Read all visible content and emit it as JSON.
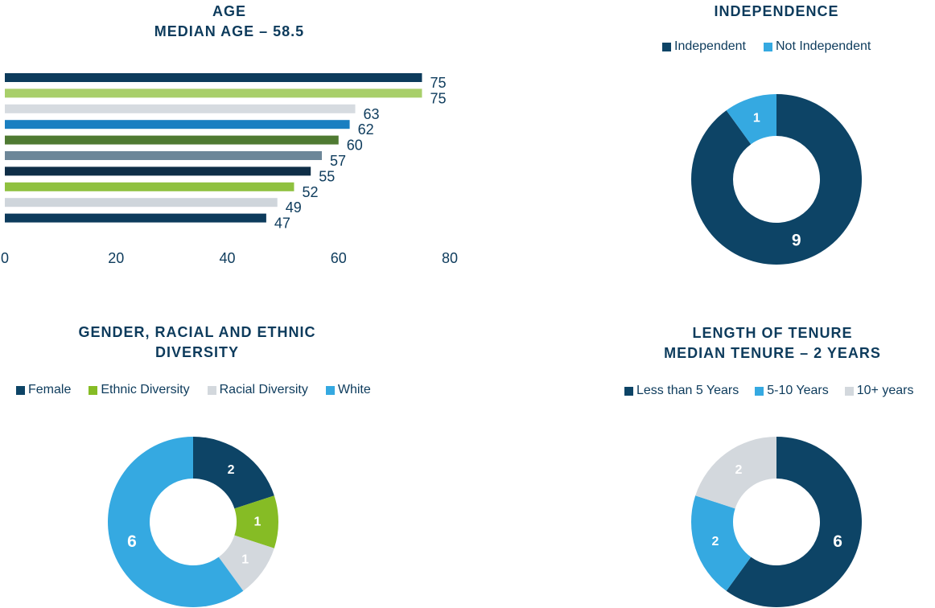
{
  "chart_data": [
    {
      "type": "bar",
      "orientation": "horizontal",
      "title": "AGE",
      "subtitle": "MEDIAN AGE – 58.5",
      "values": [
        75,
        75,
        63,
        62,
        60,
        57,
        55,
        52,
        49,
        47
      ],
      "value_labels": [
        "75",
        "75",
        "63",
        "62",
        "60",
        "57",
        "55",
        "52",
        "49",
        "47"
      ],
      "colors": [
        "#0d3b5c",
        "#a8cf6a",
        "#d6dbe0",
        "#1a7fc1",
        "#4f7a32",
        "#6d8799",
        "#0f2e47",
        "#8fc13f",
        "#cfd5db",
        "#0d3b5c"
      ],
      "xlim": [
        0,
        80
      ],
      "xticks": [
        0,
        20,
        40,
        60,
        80
      ],
      "xtick_labels": [
        "0",
        "20",
        "40",
        "60",
        "80"
      ]
    },
    {
      "type": "pie",
      "donut": true,
      "title": "INDEPENDENCE",
      "legend": [
        {
          "label": "Independent",
          "color": "#0d4466"
        },
        {
          "label": "Not Independent",
          "color": "#35a9e1"
        }
      ],
      "values": [
        9,
        1
      ],
      "value_labels": [
        "9",
        "1"
      ],
      "colors": [
        "#0d4466",
        "#35a9e1"
      ]
    },
    {
      "type": "pie",
      "donut": true,
      "title": "GENDER, RACIAL AND ETHNIC DIVERSITY",
      "legend": [
        {
          "label": "Female",
          "color": "#0d4466"
        },
        {
          "label": "Ethnic Diversity",
          "color": "#86bc25"
        },
        {
          "label": "Racial Diversity",
          "color": "#d3d8dd"
        },
        {
          "label": "White",
          "color": "#35a9e1"
        }
      ],
      "values": [
        2,
        1,
        1,
        6
      ],
      "value_labels": [
        "2",
        "1",
        "1",
        "6"
      ],
      "colors": [
        "#0d4466",
        "#86bc25",
        "#d3d8dd",
        "#35a9e1"
      ]
    },
    {
      "type": "pie",
      "donut": true,
      "title": "LENGTH OF TENURE",
      "subtitle": "MEDIAN TENURE – 2 YEARS",
      "legend": [
        {
          "label": "Less than 5 Years",
          "color": "#0d4466"
        },
        {
          "label": "5-10 Years",
          "color": "#35a9e1"
        },
        {
          "label": "10+ years",
          "color": "#d3d8dd"
        }
      ],
      "values": [
        6,
        2,
        2
      ],
      "value_labels": [
        "6",
        "2",
        "2"
      ],
      "colors": [
        "#0d4466",
        "#35a9e1",
        "#d3d8dd"
      ]
    }
  ]
}
